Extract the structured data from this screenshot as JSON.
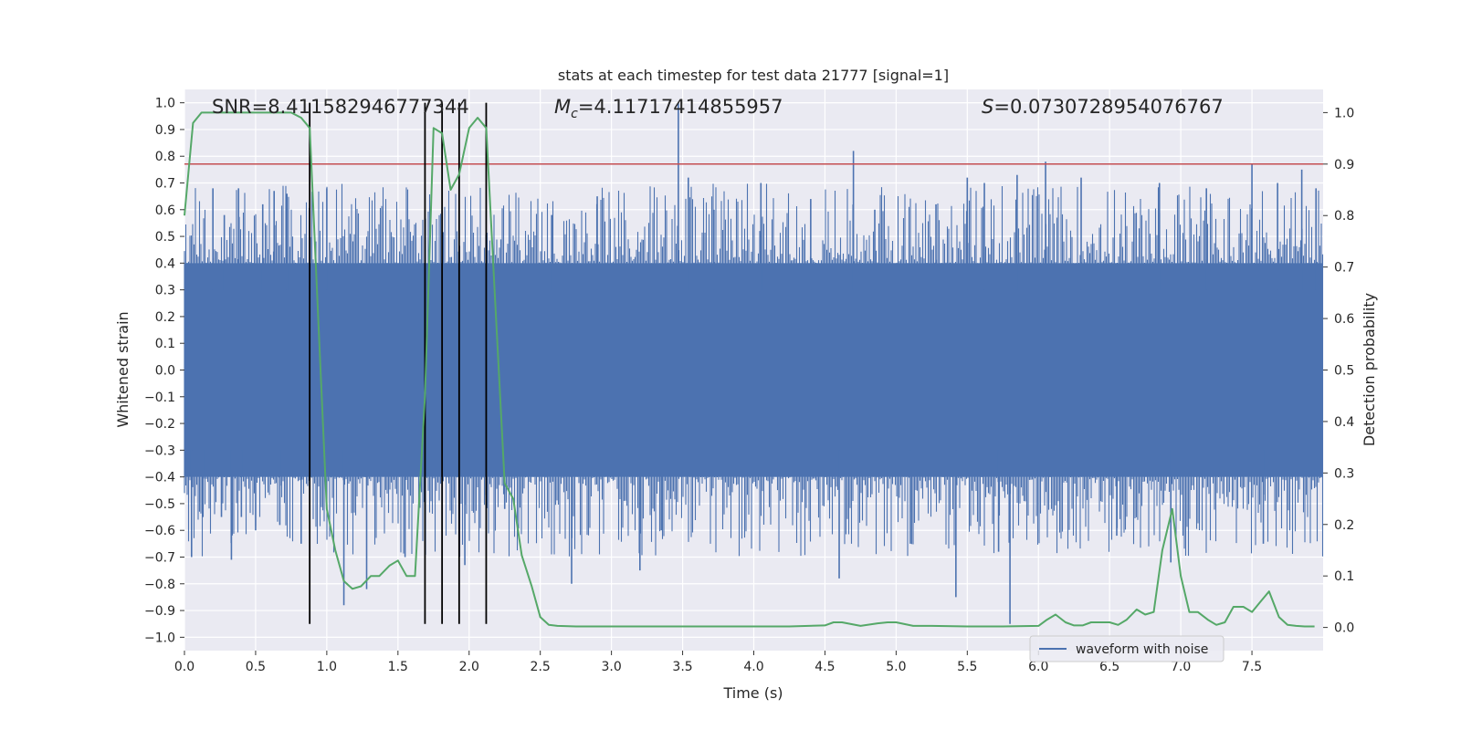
{
  "chart_data": {
    "type": "line",
    "title": "stats at each timestep for test data 21777 [signal=1]",
    "xlabel": "Time (s)",
    "ylabel_left": "Whitened strain",
    "ylabel_right": "Detection probability",
    "xlim": [
      0,
      8
    ],
    "ylim_left": [
      -1.05,
      1.05
    ],
    "ylim_right": [
      -0.045,
      1.045
    ],
    "x_ticks": [
      0.0,
      0.5,
      1.0,
      1.5,
      2.0,
      2.5,
      3.0,
      3.5,
      4.0,
      4.5,
      5.0,
      5.5,
      6.0,
      6.5,
      7.0,
      7.5
    ],
    "x_tick_labels": [
      "0.0",
      "0.5",
      "1.0",
      "1.5",
      "2.0",
      "2.5",
      "3.0",
      "3.5",
      "4.0",
      "4.5",
      "5.0",
      "5.5",
      "6.0",
      "6.5",
      "7.0",
      "7.5"
    ],
    "y_left_ticks": [
      1.0,
      0.9,
      0.8,
      0.7,
      0.6,
      0.5,
      0.4,
      0.3,
      0.2,
      0.1,
      0.0,
      -0.1,
      -0.2,
      -0.3,
      -0.4,
      -0.5,
      -0.6,
      -0.7,
      -0.8,
      -0.9,
      -1.0
    ],
    "y_left_tick_labels": [
      "1.0",
      "0.9",
      "0.8",
      "0.7",
      "0.6",
      "0.5",
      "0.4",
      "0.3",
      "0.2",
      "0.1",
      "0.0",
      "−0.1",
      "−0.2",
      "−0.3",
      "−0.4",
      "−0.5",
      "−0.6",
      "−0.7",
      "−0.8",
      "−0.9",
      "−1.0"
    ],
    "y_right_ticks": [
      1.0,
      0.9,
      0.8,
      0.7,
      0.6,
      0.5,
      0.4,
      0.3,
      0.2,
      0.1,
      0.0
    ],
    "y_right_tick_labels": [
      "1.0",
      "0.9",
      "0.8",
      "0.7",
      "0.6",
      "0.5",
      "0.4",
      "0.3",
      "0.2",
      "0.1",
      "0.0"
    ],
    "grid": true,
    "annotations": {
      "snr": "SNR=8.411582946777344",
      "mc_prefix": "M",
      "mc_sub": "c",
      "mc_value": "=4.11717414855957",
      "s_prefix": "S",
      "s_value": "=0.0730728954076767"
    },
    "threshold": {
      "value": 0.9,
      "axis": "right",
      "color": "#c44e52"
    },
    "vertical_lines": {
      "x": [
        0.88,
        1.69,
        1.81,
        1.93,
        2.12
      ],
      "ymin": -0.95,
      "ymax": 1.0,
      "color": "#000000"
    },
    "waveform": {
      "name": "waveform with noise",
      "color": "#4c72b0",
      "band": 0.4,
      "spikes": [
        {
          "x": 0.05,
          "y": -0.7
        },
        {
          "x": 0.13,
          "y": -0.55
        },
        {
          "x": 0.2,
          "y": 0.68
        },
        {
          "x": 0.26,
          "y": -0.55
        },
        {
          "x": 0.28,
          "y": 0.58
        },
        {
          "x": 0.33,
          "y": -0.71
        },
        {
          "x": 0.38,
          "y": 0.68
        },
        {
          "x": 0.4,
          "y": -0.55
        },
        {
          "x": 0.5,
          "y": -0.6
        },
        {
          "x": 0.55,
          "y": 0.62
        },
        {
          "x": 0.63,
          "y": 0.67
        },
        {
          "x": 0.67,
          "y": -0.58
        },
        {
          "x": 0.72,
          "y": 0.66
        },
        {
          "x": 0.82,
          "y": -0.65
        },
        {
          "x": 1.0,
          "y": 0.68
        },
        {
          "x": 1.12,
          "y": -0.88
        },
        {
          "x": 1.28,
          "y": -0.82
        },
        {
          "x": 1.55,
          "y": -0.7
        },
        {
          "x": 1.97,
          "y": -0.73
        },
        {
          "x": 2.25,
          "y": -0.52
        },
        {
          "x": 2.58,
          "y": 0.58
        },
        {
          "x": 2.72,
          "y": -0.8
        },
        {
          "x": 2.9,
          "y": 0.65
        },
        {
          "x": 3.2,
          "y": -0.75
        },
        {
          "x": 3.35,
          "y": -0.6
        },
        {
          "x": 3.47,
          "y": 1.0
        },
        {
          "x": 3.54,
          "y": 0.72
        },
        {
          "x": 3.72,
          "y": 0.6
        },
        {
          "x": 4.05,
          "y": 0.7
        },
        {
          "x": 4.4,
          "y": 0.64
        },
        {
          "x": 4.6,
          "y": -0.78
        },
        {
          "x": 4.7,
          "y": 0.82
        },
        {
          "x": 4.85,
          "y": 0.6
        },
        {
          "x": 5.1,
          "y": -0.65
        },
        {
          "x": 5.28,
          "y": 0.62
        },
        {
          "x": 5.42,
          "y": -0.85
        },
        {
          "x": 5.5,
          "y": 0.72
        },
        {
          "x": 5.62,
          "y": 0.7
        },
        {
          "x": 5.72,
          "y": -0.68
        },
        {
          "x": 5.8,
          "y": -0.95
        },
        {
          "x": 5.85,
          "y": 0.73
        },
        {
          "x": 6.05,
          "y": 0.78
        },
        {
          "x": 6.3,
          "y": 0.72
        },
        {
          "x": 6.55,
          "y": -0.62
        },
        {
          "x": 6.85,
          "y": 0.7
        },
        {
          "x": 6.93,
          "y": -0.72
        },
        {
          "x": 7.18,
          "y": 0.68
        },
        {
          "x": 7.5,
          "y": 0.77
        },
        {
          "x": 7.58,
          "y": -0.65
        },
        {
          "x": 7.68,
          "y": 0.7
        },
        {
          "x": 7.85,
          "y": 0.75
        },
        {
          "x": 7.95,
          "y": 0.68
        }
      ]
    },
    "probability_curve": {
      "color": "#55a868",
      "x": [
        0.0,
        0.06,
        0.12,
        0.2,
        0.3,
        0.4,
        0.5,
        0.6,
        0.7,
        0.75,
        0.82,
        0.88,
        0.94,
        1.0,
        1.06,
        1.12,
        1.18,
        1.24,
        1.31,
        1.37,
        1.44,
        1.5,
        1.56,
        1.62,
        1.69,
        1.75,
        1.81,
        1.87,
        1.93,
        2.0,
        2.06,
        2.12,
        2.18,
        2.25,
        2.31,
        2.37,
        2.44,
        2.5,
        2.56,
        2.62,
        2.75,
        3.0,
        3.25,
        3.5,
        3.75,
        4.0,
        4.25,
        4.5,
        4.56,
        4.62,
        4.75,
        4.87,
        4.94,
        5.0,
        5.12,
        5.25,
        5.5,
        5.75,
        6.0,
        6.06,
        6.12,
        6.19,
        6.25,
        6.31,
        6.37,
        6.44,
        6.5,
        6.56,
        6.62,
        6.69,
        6.75,
        6.81,
        6.87,
        6.94,
        7.0,
        7.06,
        7.12,
        7.19,
        7.25,
        7.31,
        7.37,
        7.44,
        7.5,
        7.56,
        7.62,
        7.69,
        7.75,
        7.81,
        7.87,
        7.94
      ],
      "y": [
        0.8,
        0.98,
        1.0,
        1.0,
        1.0,
        1.0,
        1.0,
        1.0,
        1.0,
        1.0,
        0.99,
        0.97,
        0.6,
        0.23,
        0.15,
        0.09,
        0.075,
        0.08,
        0.1,
        0.1,
        0.12,
        0.13,
        0.1,
        0.1,
        0.45,
        0.97,
        0.96,
        0.85,
        0.88,
        0.97,
        0.99,
        0.97,
        0.65,
        0.28,
        0.25,
        0.14,
        0.08,
        0.02,
        0.005,
        0.003,
        0.002,
        0.002,
        0.002,
        0.002,
        0.002,
        0.002,
        0.002,
        0.004,
        0.01,
        0.01,
        0.003,
        0.008,
        0.01,
        0.01,
        0.003,
        0.003,
        0.002,
        0.002,
        0.003,
        0.015,
        0.025,
        0.01,
        0.004,
        0.004,
        0.01,
        0.01,
        0.01,
        0.005,
        0.015,
        0.035,
        0.025,
        0.03,
        0.15,
        0.23,
        0.1,
        0.03,
        0.03,
        0.015,
        0.005,
        0.01,
        0.04,
        0.04,
        0.03,
        0.05,
        0.07,
        0.02,
        0.005,
        0.003,
        0.002,
        0.002
      ]
    },
    "legend": {
      "location": "lower-center",
      "label": "waveform with noise"
    }
  }
}
